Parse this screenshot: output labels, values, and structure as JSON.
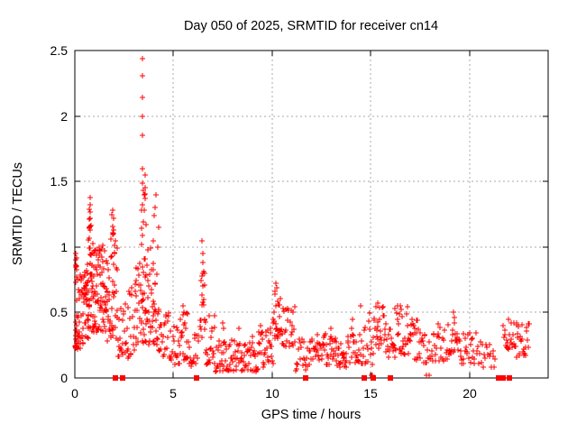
{
  "chart_data": {
    "type": "scatter",
    "title": "Day 050 of 2025, SRMTID for receiver cn14",
    "xlabel": "GPS time / hours",
    "ylabel": "SRMTID / TECUs",
    "xlim": [
      0,
      24
    ],
    "ylim": [
      0,
      2.5
    ],
    "xticks": [
      0,
      5,
      10,
      15,
      20
    ],
    "yticks": [
      0,
      0.5,
      1,
      1.5,
      2,
      2.5
    ],
    "grid": true,
    "grid_style": "dashed",
    "grid_color": "#a8a8a8",
    "marker": "plus",
    "marker_color": "#ff0000",
    "background_color": "#ffffff",
    "prng_seed": 50,
    "series": [
      {
        "name": "SRMTID",
        "marker": "plus",
        "color": "#ff0000",
        "points": [
          [
            0.03,
            0.95
          ],
          [
            0.05,
            0.9
          ],
          [
            0.06,
            0.85
          ],
          [
            0.77,
            1.38
          ],
          [
            0.76,
            1.32
          ],
          [
            0.78,
            1.27
          ],
          [
            0.75,
            1.21
          ],
          [
            0.79,
            1.16
          ],
          [
            1.93,
            1.28
          ],
          [
            1.95,
            1.22
          ],
          [
            1.92,
            1.16
          ],
          [
            3.43,
            2.44
          ],
          [
            3.43,
            2.31
          ],
          [
            3.43,
            2.14
          ],
          [
            3.43,
            2.0
          ],
          [
            3.44,
            1.85
          ],
          [
            3.45,
            1.6
          ],
          [
            3.42,
            1.49
          ],
          [
            3.55,
            1.55
          ],
          [
            3.57,
            1.45
          ],
          [
            3.52,
            1.4
          ],
          [
            4.05,
            1.3
          ],
          [
            4.1,
            1.4
          ],
          [
            4.0,
            1.24
          ],
          [
            5.5,
            0.55
          ],
          [
            5.55,
            0.5
          ],
          [
            6.45,
            1.05
          ],
          [
            6.47,
            0.95
          ],
          [
            6.5,
            0.88
          ],
          [
            7.5,
            0.42
          ],
          [
            7.55,
            0.38
          ],
          [
            8.3,
            0.38
          ],
          [
            9.0,
            0.32
          ],
          [
            10.2,
            0.72
          ],
          [
            10.25,
            0.69
          ],
          [
            10.15,
            0.66
          ],
          [
            12.3,
            0.33
          ],
          [
            13.0,
            0.38
          ],
          [
            14.1,
            0.45
          ],
          [
            14.5,
            0.55
          ],
          [
            15.35,
            0.57
          ],
          [
            15.45,
            0.54
          ],
          [
            16.5,
            0.55
          ],
          [
            16.55,
            0.52
          ],
          [
            19.2,
            0.5
          ],
          [
            19.25,
            0.46
          ],
          [
            22.0,
            0.45
          ],
          [
            22.4,
            0.42
          ],
          [
            15.02,
            0.02
          ],
          [
            15.08,
            0.02
          ],
          [
            17.85,
            0.02
          ],
          [
            17.95,
            0.02
          ]
        ]
      }
    ],
    "dense_bands_note": "dense scatter regions read from the plot: [x_start_hr, x_end_hr, y_min_TECU, y_max_TECU, approx_point_count]",
    "dense_bands": [
      [
        0.02,
        0.12,
        0.2,
        0.92,
        22
      ],
      [
        0.1,
        0.45,
        0.22,
        0.8,
        34
      ],
      [
        0.45,
        0.7,
        0.28,
        0.88,
        28
      ],
      [
        0.65,
        0.95,
        0.35,
        1.1,
        38
      ],
      [
        0.72,
        0.82,
        1.12,
        1.36,
        7
      ],
      [
        0.95,
        1.2,
        0.35,
        1.0,
        28
      ],
      [
        1.2,
        1.5,
        0.35,
        1.05,
        32
      ],
      [
        1.5,
        1.8,
        0.28,
        0.9,
        26
      ],
      [
        1.8,
        2.15,
        0.3,
        1.1,
        30
      ],
      [
        1.88,
        1.98,
        1.08,
        1.27,
        5
      ],
      [
        2.15,
        2.55,
        0.13,
        0.6,
        20
      ],
      [
        2.55,
        3.1,
        0.15,
        0.72,
        26
      ],
      [
        3.05,
        3.35,
        0.2,
        0.9,
        16
      ],
      [
        3.35,
        3.6,
        0.5,
        1.45,
        26
      ],
      [
        3.35,
        3.65,
        0.25,
        0.52,
        10
      ],
      [
        3.6,
        4.0,
        0.25,
        1.05,
        28
      ],
      [
        3.95,
        4.3,
        0.2,
        1.18,
        24
      ],
      [
        4.3,
        4.8,
        0.15,
        0.5,
        20
      ],
      [
        4.8,
        5.3,
        0.1,
        0.4,
        20
      ],
      [
        5.3,
        5.75,
        0.13,
        0.5,
        20
      ],
      [
        5.75,
        6.3,
        0.08,
        0.35,
        18
      ],
      [
        6.35,
        6.62,
        0.3,
        0.85,
        20
      ],
      [
        6.6,
        7.1,
        0.1,
        0.5,
        20
      ],
      [
        7.1,
        7.7,
        0.05,
        0.28,
        26
      ],
      [
        7.7,
        8.5,
        0.05,
        0.3,
        30
      ],
      [
        8.5,
        9.3,
        0.05,
        0.3,
        30
      ],
      [
        9.3,
        10.05,
        0.08,
        0.4,
        32
      ],
      [
        10.05,
        10.45,
        0.3,
        0.66,
        24
      ],
      [
        10.45,
        11.15,
        0.22,
        0.55,
        28
      ],
      [
        11.15,
        11.85,
        0.05,
        0.3,
        20
      ],
      [
        11.85,
        12.6,
        0.1,
        0.3,
        26
      ],
      [
        12.6,
        13.25,
        0.1,
        0.36,
        26
      ],
      [
        13.25,
        13.75,
        0.08,
        0.28,
        20
      ],
      [
        13.75,
        14.35,
        0.12,
        0.42,
        22
      ],
      [
        14.35,
        15.1,
        0.1,
        0.5,
        24
      ],
      [
        15.1,
        15.8,
        0.18,
        0.55,
        28
      ],
      [
        15.8,
        16.25,
        0.13,
        0.38,
        16
      ],
      [
        16.25,
        16.95,
        0.18,
        0.55,
        28
      ],
      [
        16.95,
        17.55,
        0.13,
        0.45,
        22
      ],
      [
        17.55,
        18.35,
        0.1,
        0.38,
        24
      ],
      [
        18.35,
        19.1,
        0.13,
        0.42,
        24
      ],
      [
        19.1,
        19.45,
        0.2,
        0.48,
        13
      ],
      [
        19.45,
        20.4,
        0.1,
        0.35,
        28
      ],
      [
        20.4,
        21.35,
        0.08,
        0.28,
        20
      ],
      [
        21.7,
        22.25,
        0.22,
        0.45,
        18
      ],
      [
        22.25,
        23.05,
        0.15,
        0.42,
        28
      ]
    ],
    "zero_event_squares_note": "filled red squares sitting on the y=0 axis, at GPS hours",
    "zero_event_squares": [
      2.05,
      2.43,
      6.17,
      11.72,
      14.68,
      15.15,
      16.0,
      21.5,
      21.72,
      22.03
    ]
  }
}
